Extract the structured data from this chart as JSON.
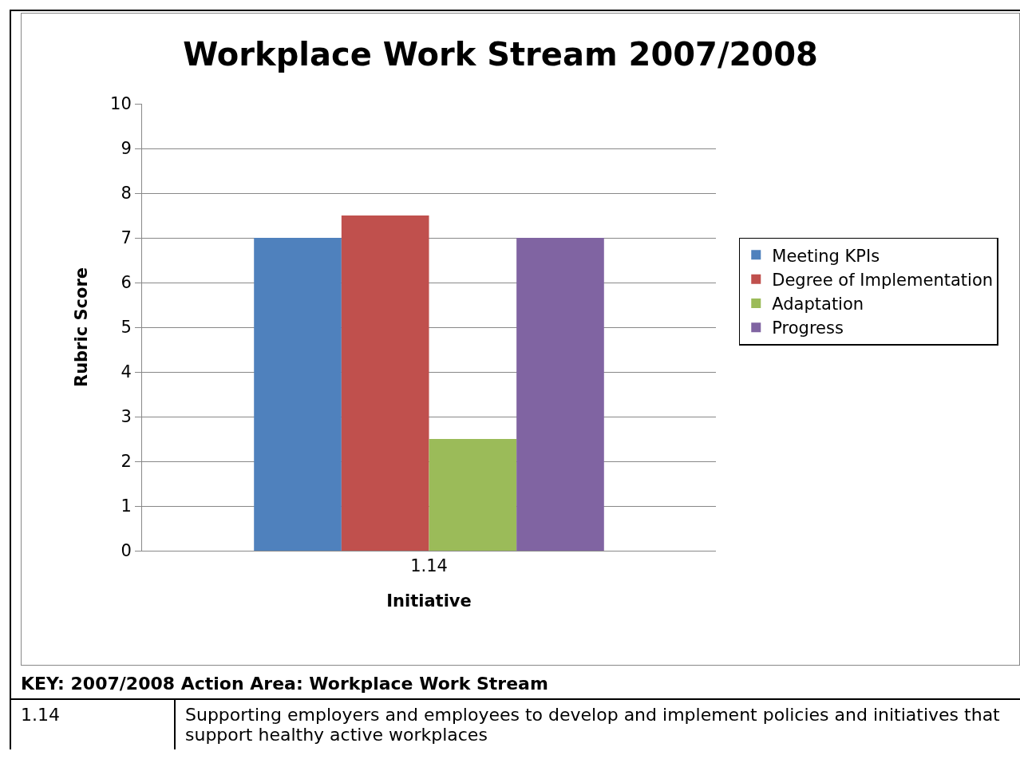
{
  "chart_data": {
    "type": "bar",
    "title": "Workplace Work Stream 2007/2008",
    "xlabel": "Initiative",
    "ylabel": "Rubric Score",
    "categories": [
      "1.14"
    ],
    "series": [
      {
        "name": "Meeting KPIs",
        "color": "#4f81bd",
        "values": [
          7
        ]
      },
      {
        "name": "Degree of Implementation",
        "color": "#c0504d",
        "values": [
          7.5
        ]
      },
      {
        "name": "Adaptation",
        "color": "#9bbb59",
        "values": [
          2.5
        ]
      },
      {
        "name": "Progress",
        "color": "#8064a2",
        "values": [
          7
        ]
      }
    ],
    "ylim": [
      0,
      10
    ],
    "yticks": [
      0,
      1,
      2,
      3,
      4,
      5,
      6,
      7,
      8,
      9,
      10
    ],
    "grid": "y",
    "legend": "right",
    "annotations": [
      "KEY: 2007/2008 Action Area: Workplace Work Stream",
      "1.14",
      "Supporting employers and employees to develop and implement policies and initiatives that support healthy active workplaces"
    ]
  }
}
